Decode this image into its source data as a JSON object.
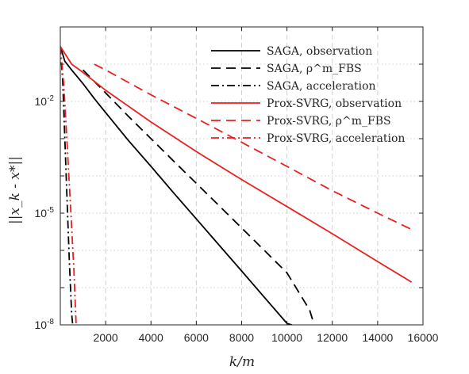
{
  "chart_data": {
    "type": "line",
    "xlabel": "k/m",
    "ylabel": "||x_k - x*||",
    "xlim": [
      0,
      16000
    ],
    "ylim": [
      1e-08,
      1
    ],
    "yscale": "log",
    "grid": true,
    "legend_placement": "top-right",
    "x_ticks": [
      2000,
      4000,
      6000,
      8000,
      10000,
      12000,
      14000,
      16000
    ],
    "x_tick_labels": [
      "2000",
      "4000",
      "6000",
      "8000",
      "10000",
      "12000",
      "14000",
      "16000"
    ],
    "y_ticks": [
      1e-08,
      1e-05,
      0.01
    ],
    "y_tick_labels": [
      "10",
      "10",
      "10"
    ],
    "y_tick_exponents": [
      "-8",
      "-5",
      "-2"
    ],
    "series": [
      {
        "name": "SAGA, observation",
        "color": "#000000",
        "dash": "solid",
        "x": [
          0,
          200,
          500,
          1000,
          1500,
          2000,
          3000,
          4000,
          5000,
          6000,
          7000,
          8000,
          9000,
          10000,
          10300
        ],
        "y": [
          0.3,
          0.12,
          0.07,
          0.03,
          0.012,
          0.005,
          0.0009,
          0.00018,
          3.5e-05,
          7e-06,
          1.4e-06,
          2.8e-07,
          5.5e-08,
          1.1e-08,
          8e-09
        ]
      },
      {
        "name": "SAGA, ρ^m_FBS",
        "color": "#000000",
        "dash": "dash",
        "x": [
          1000,
          2000,
          3000,
          4000,
          5000,
          6000,
          7000,
          8000,
          9000,
          10000,
          11000,
          11200
        ],
        "y": [
          0.07,
          0.017,
          0.004,
          0.001,
          0.00025,
          6.3e-05,
          1.6e-05,
          4e-06,
          1e-06,
          2.5e-07,
          2.5e-08,
          1e-08
        ]
      },
      {
        "name": "SAGA, acceleration",
        "color": "#000000",
        "dash": "dashdot",
        "x": [
          0,
          100,
          200,
          300,
          400,
          500,
          550
        ],
        "y": [
          0.3,
          0.04,
          0.001,
          2e-05,
          5e-07,
          2e-08,
          8e-09
        ]
      },
      {
        "name": "Prox-SVRG, observation",
        "color": "#e8201f",
        "dash": "solid",
        "x": [
          0,
          500,
          1000,
          2000,
          4000,
          6000,
          8000,
          10000,
          12000,
          14000,
          15500
        ],
        "y": [
          0.3,
          0.1,
          0.06,
          0.02,
          0.0028,
          0.00045,
          8e-05,
          1.5e-05,
          2.8e-06,
          5e-07,
          1.4e-07
        ]
      },
      {
        "name": "Prox-SVRG, ρ^m_FBS",
        "color": "#e8201f",
        "dash": "dash",
        "x": [
          1500,
          2000,
          4000,
          6000,
          8000,
          10000,
          12000,
          14000,
          15600
        ],
        "y": [
          0.1,
          0.07,
          0.015,
          0.0035,
          0.0008,
          0.00018,
          4e-05,
          1e-05,
          3.4e-06
        ]
      },
      {
        "name": "Prox-SVRG, acceleration",
        "color": "#e8201f",
        "dash": "dashdot",
        "x": [
          0,
          150,
          300,
          450,
          600,
          700
        ],
        "y": [
          0.3,
          0.03,
          0.0007,
          1.5e-05,
          3e-07,
          8e-09
        ]
      }
    ]
  }
}
